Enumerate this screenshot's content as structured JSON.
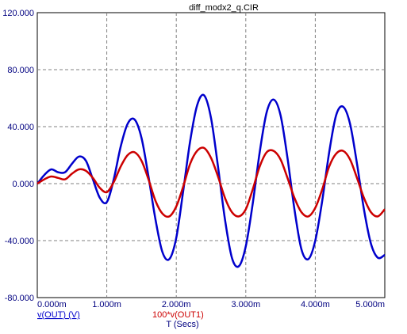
{
  "chart_data": {
    "type": "line",
    "title": "diff_modx2_q.CIR",
    "xlabel": "T (Secs)",
    "ylabel": "",
    "xlim": [
      0,
      0.005
    ],
    "ylim": [
      -80,
      120
    ],
    "x_ticks": [
      0,
      0.001,
      0.002,
      0.003,
      0.004,
      0.005
    ],
    "x_tick_labels": [
      "0.000m",
      "1.000m",
      "2.000m",
      "3.000m",
      "4.000m",
      "5.000m"
    ],
    "y_ticks": [
      -80,
      -40,
      0,
      40,
      80,
      120
    ],
    "y_tick_labels": [
      "-80.000",
      "-40.000",
      "0.000",
      "40.000",
      "80.000",
      "120.000"
    ],
    "grid": true,
    "legend_placement": "bottom-left",
    "series": [
      {
        "name": "v(OUT) (V)",
        "color": "#0000cc",
        "x": [
          0,
          0.0001,
          0.0002,
          0.0003,
          0.0004,
          0.0005,
          0.0006,
          0.0007,
          0.0008,
          0.0009,
          0.001,
          0.0011,
          0.0012,
          0.0013,
          0.0014,
          0.0015,
          0.0016,
          0.0017,
          0.0018,
          0.0019,
          0.002,
          0.0021,
          0.0022,
          0.0023,
          0.0024,
          0.0025,
          0.0026,
          0.0027,
          0.0028,
          0.0029,
          0.003,
          0.0031,
          0.0032,
          0.0033,
          0.0034,
          0.0035,
          0.0036,
          0.0037,
          0.0038,
          0.0039,
          0.004,
          0.0041,
          0.0042,
          0.0043,
          0.0044,
          0.0045,
          0.0046,
          0.0047,
          0.0048,
          0.0049,
          0.005
        ],
        "y": [
          0,
          6,
          10,
          8,
          8,
          14,
          19,
          16,
          3,
          -10,
          -13,
          3,
          26,
          42,
          45,
          32,
          5,
          -25,
          -48,
          -53,
          -38,
          -5,
          30,
          55,
          62,
          46,
          12,
          -25,
          -52,
          -58,
          -44,
          -14,
          22,
          50,
          59,
          48,
          18,
          -18,
          -46,
          -53,
          -40,
          -12,
          22,
          48,
          54,
          42,
          14,
          -18,
          -42,
          -52,
          -50
        ]
      },
      {
        "name": "100*v(OUT1)",
        "color": "#cc0000",
        "x": [
          0,
          0.0001,
          0.0002,
          0.0003,
          0.0004,
          0.0005,
          0.0006,
          0.0007,
          0.0008,
          0.0009,
          0.001,
          0.0011,
          0.0012,
          0.0013,
          0.0014,
          0.0015,
          0.0016,
          0.0017,
          0.0018,
          0.0019,
          0.002,
          0.0021,
          0.0022,
          0.0023,
          0.0024,
          0.0025,
          0.0026,
          0.0027,
          0.0028,
          0.0029,
          0.003,
          0.0031,
          0.0032,
          0.0033,
          0.0034,
          0.0035,
          0.0036,
          0.0037,
          0.0038,
          0.0039,
          0.004,
          0.0041,
          0.0042,
          0.0043,
          0.0044,
          0.0045,
          0.0046,
          0.0047,
          0.0048,
          0.0049,
          0.005
        ],
        "y": [
          0,
          3,
          5,
          4,
          3,
          7,
          10,
          9,
          4,
          -3,
          -6,
          1,
          12,
          20,
          22,
          16,
          3,
          -12,
          -21,
          -23,
          -16,
          -2,
          14,
          23,
          25,
          18,
          5,
          -10,
          -20,
          -23,
          -18,
          -4,
          12,
          22,
          23,
          17,
          4,
          -10,
          -20,
          -23,
          -17,
          -4,
          12,
          21,
          23,
          17,
          4,
          -10,
          -20,
          -23,
          -18
        ]
      }
    ]
  }
}
